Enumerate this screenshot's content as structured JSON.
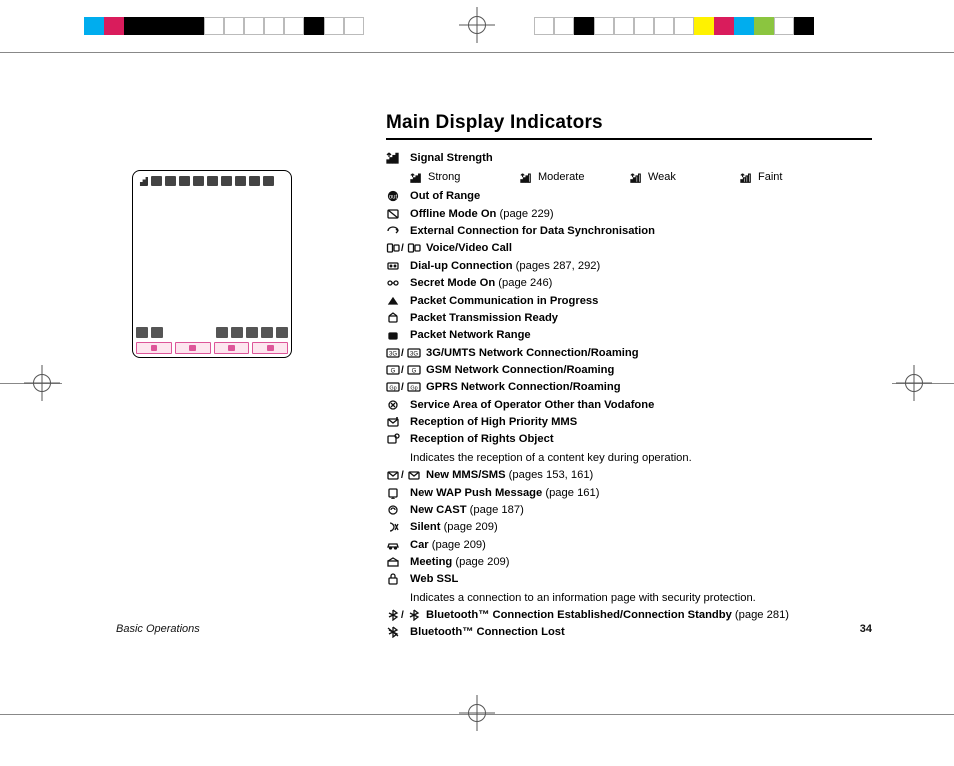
{
  "registration": {
    "top_left_colors": [
      "#00adee",
      "#d91c5c",
      "#000000",
      "#000000",
      "#000000",
      "#000000",
      "#ffffff",
      "#ffffff",
      "#ffffff",
      "#ffffff",
      "#ffffff",
      "#000000",
      "#ffffff",
      "#ffffff"
    ],
    "top_right_colors": [
      "#ffffff",
      "#ffffff",
      "#000000",
      "#ffffff",
      "#ffffff",
      "#ffffff",
      "#ffffff",
      "#ffffff",
      "#fff200",
      "#d91c5c",
      "#00adee",
      "#8bc53f",
      "#ffffff",
      "#000000"
    ]
  },
  "page": {
    "title": "Main Display Indicators",
    "section": "Basic Operations",
    "number": "34"
  },
  "signal_levels": [
    {
      "label": "Strong",
      "icon": "signal-4-icon"
    },
    {
      "label": "Moderate",
      "icon": "signal-3-icon"
    },
    {
      "label": "Weak",
      "icon": "signal-2-icon"
    },
    {
      "label": "Faint",
      "icon": "signal-1-icon"
    }
  ],
  "indicators": [
    {
      "icon": "signal-icon",
      "label": "Signal Strength",
      "has_sublevels": true
    },
    {
      "icon": "out-of-range-icon",
      "label": "Out of Range"
    },
    {
      "icon": "offline-icon",
      "label": "Offline Mode On",
      "note": "(page 229)"
    },
    {
      "icon": "sync-icon",
      "label": "External Connection for Data Synchronisation"
    },
    {
      "icon": "voice-video-icon",
      "dual": true,
      "label": "Voice/Video Call"
    },
    {
      "icon": "dialup-icon",
      "label": "Dial-up Connection",
      "note": "(pages 287, 292)"
    },
    {
      "icon": "secret-icon",
      "label": "Secret Mode On",
      "note": "(page 246)"
    },
    {
      "icon": "packet-comm-icon",
      "label": "Packet Communication in Progress"
    },
    {
      "icon": "packet-ready-icon",
      "label": "Packet Transmission Ready"
    },
    {
      "icon": "packet-range-icon",
      "label": "Packet Network Range"
    },
    {
      "icon": "3g-icon",
      "dual": true,
      "label": "3G/UMTS Network Connection/Roaming"
    },
    {
      "icon": "gsm-icon",
      "dual": true,
      "label": "GSM Network Connection/Roaming"
    },
    {
      "icon": "gprs-icon",
      "dual": true,
      "label": "GPRS Network Connection/Roaming"
    },
    {
      "icon": "operator-icon",
      "label": "Service Area of Operator Other than Vodafone"
    },
    {
      "icon": "mms-priority-icon",
      "label": "Reception of High Priority MMS"
    },
    {
      "icon": "rights-obj-icon",
      "label": "Reception of Rights Object",
      "desc": "Indicates the reception of a content key during operation."
    },
    {
      "icon": "new-mms-icon",
      "dual": true,
      "label": "New MMS/SMS",
      "note": "(pages 153, 161)"
    },
    {
      "icon": "wap-push-icon",
      "label": "New WAP Push Message",
      "note": "(page 161)"
    },
    {
      "icon": "cast-icon",
      "label": "New CAST",
      "note": "(page 187)"
    },
    {
      "icon": "silent-icon",
      "label": "Silent",
      "note": "(page 209)"
    },
    {
      "icon": "car-icon",
      "label": "Car",
      "note": "(page 209)"
    },
    {
      "icon": "meeting-icon",
      "label": "Meeting",
      "note": "(page 209)"
    },
    {
      "icon": "ssl-icon",
      "label": "Web SSL",
      "desc": "Indicates a connection to an information page with security protection."
    },
    {
      "icon": "bluetooth-icon",
      "dual": true,
      "label": "Bluetooth™ Connection Established/Connection Standby",
      "note": "(page 281)"
    },
    {
      "icon": "bluetooth-lost-icon",
      "label": "Bluetooth™ Connection Lost"
    }
  ]
}
